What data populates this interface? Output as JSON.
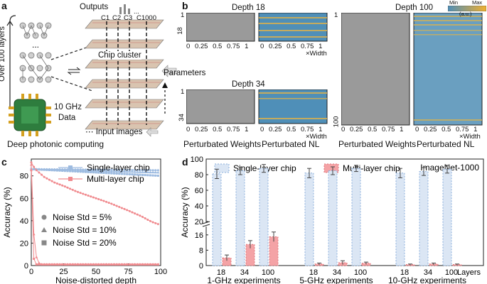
{
  "panel_labels": {
    "a": "a",
    "b": "b",
    "c": "c",
    "d": "d"
  },
  "panel_a": {
    "outputs_label": "Outputs",
    "channels": [
      "C1",
      "C2",
      "C3",
      "C1000"
    ],
    "ellipsis": "...",
    "chip_cluster_label": "Chip cluster",
    "over_layers_label": "Over 100 layers",
    "freq_label": "10 GHz",
    "data_label": "Data",
    "parameters_label": "Parameters",
    "input_label": "Input images",
    "caption": "Deep photonic computing"
  },
  "panel_b": {
    "colorbar": {
      "min": "Min",
      "max": "Max",
      "unit": "(a.u.)"
    },
    "depth18": {
      "title": "Depth 18",
      "y_ticks": [
        "1",
        "18"
      ],
      "x_ticks": [
        "0",
        "0.25",
        "0.5",
        "0.75",
        "1"
      ],
      "x_unit": "×Width"
    },
    "depth34": {
      "title": "Depth 34",
      "y_ticks": [
        "1",
        "34"
      ],
      "x_ticks": [
        "0",
        "0.25",
        "0.5",
        "0.75",
        "1"
      ],
      "x_unit": "×Width"
    },
    "depth100": {
      "title": "Depth 100",
      "y_ticks": [
        "1",
        "100"
      ],
      "x_ticks": [
        "0",
        "0.25",
        "0.5",
        "0.75",
        "1"
      ],
      "x_unit": "×Width"
    },
    "labels": {
      "weights": "Perturbated Weights",
      "nl": "Perturbated NL"
    }
  },
  "chart_data": [
    {
      "id": "c",
      "type": "line",
      "title": "",
      "xlabel": "Noise-distorted depth",
      "ylabel": "Accuracy (%)",
      "xlim": [
        0,
        100
      ],
      "ylim": [
        0,
        95
      ],
      "x_ticks": [
        0,
        25,
        50,
        75,
        100
      ],
      "y_ticks": [
        0,
        20,
        40,
        60,
        80
      ],
      "legend": [
        "Single-layer chip",
        "Multi-layer chip"
      ],
      "noise_legend": [
        "Noise Std = 5%",
        "Noise Std = 10%",
        "Noise Std = 20%"
      ],
      "colors": {
        "single": "#9dbbe0",
        "multi": "#f08a8e"
      },
      "series": [
        {
          "name": "Single-layer chip, Std 5%",
          "profile": [
            [
              0,
              86
            ],
            [
              100,
              85
            ]
          ]
        },
        {
          "name": "Single-layer chip, Std 10%",
          "profile": [
            [
              0,
              86
            ],
            [
              100,
              83
            ]
          ]
        },
        {
          "name": "Single-layer chip, Std 20%",
          "profile": [
            [
              0,
              86
            ],
            [
              100,
              80
            ]
          ]
        },
        {
          "name": "Multi-layer chip, Std 5%",
          "profile": [
            [
              0,
              92
            ],
            [
              3,
              86
            ],
            [
              10,
              79
            ],
            [
              18,
              74
            ],
            [
              25,
              71
            ],
            [
              35,
              66
            ],
            [
              50,
              60
            ],
            [
              60,
              56
            ],
            [
              75,
              49
            ],
            [
              85,
              44
            ],
            [
              93,
              39
            ],
            [
              98,
              37
            ]
          ]
        },
        {
          "name": "Multi-layer chip, Std 10%",
          "profile": [
            [
              0,
              90
            ],
            [
              1,
              55
            ],
            [
              2,
              28
            ],
            [
              3,
              12
            ],
            [
              5,
              3
            ],
            [
              8,
              1
            ],
            [
              100,
              1
            ]
          ]
        },
        {
          "name": "Multi-layer chip, Std 20%",
          "profile": [
            [
              0,
              85
            ],
            [
              1,
              25
            ],
            [
              2,
              6
            ],
            [
              3,
              1
            ],
            [
              100,
              1
            ]
          ]
        }
      ]
    },
    {
      "id": "d",
      "type": "bar",
      "title": "ImageNet-1000",
      "xlabel": "",
      "ylabel": "Accuracy (%)",
      "y_ticks_upper": [
        80,
        60,
        40,
        20
      ],
      "y_ticks_lower": [
        0,
        8,
        16
      ],
      "y_tick_labels": [
        "0",
        "8",
        "16",
        "20",
        "40",
        "60",
        "80",
        "100"
      ],
      "legend": [
        "Single-layer chip",
        "Multi-layer chip"
      ],
      "layers_label": "Layers",
      "groups": [
        {
          "name": "1-GHz experiments",
          "categories": [
            "18",
            "34",
            "100"
          ],
          "single": [
            81,
            85,
            88
          ],
          "single_err": [
            6,
            5,
            5
          ],
          "multi": [
            4,
            11,
            15
          ],
          "multi_err": [
            1.5,
            2,
            2.5
          ]
        },
        {
          "name": "5-GHz experiments",
          "categories": [
            "18",
            "34",
            "100"
          ],
          "single": [
            82,
            85,
            88
          ],
          "single_err": [
            6,
            5,
            4
          ],
          "multi": [
            0.8,
            1.5,
            1.2
          ],
          "multi_err": [
            0.5,
            1,
            0.6
          ]
        },
        {
          "name": "10-GHz experiments",
          "categories": [
            "18",
            "34",
            "100"
          ],
          "single": [
            82,
            84,
            87
          ],
          "single_err": [
            6,
            5,
            5
          ],
          "multi": [
            0.5,
            0.8,
            0.5
          ],
          "multi_err": [
            0.3,
            0.5,
            0.3
          ]
        }
      ]
    }
  ]
}
